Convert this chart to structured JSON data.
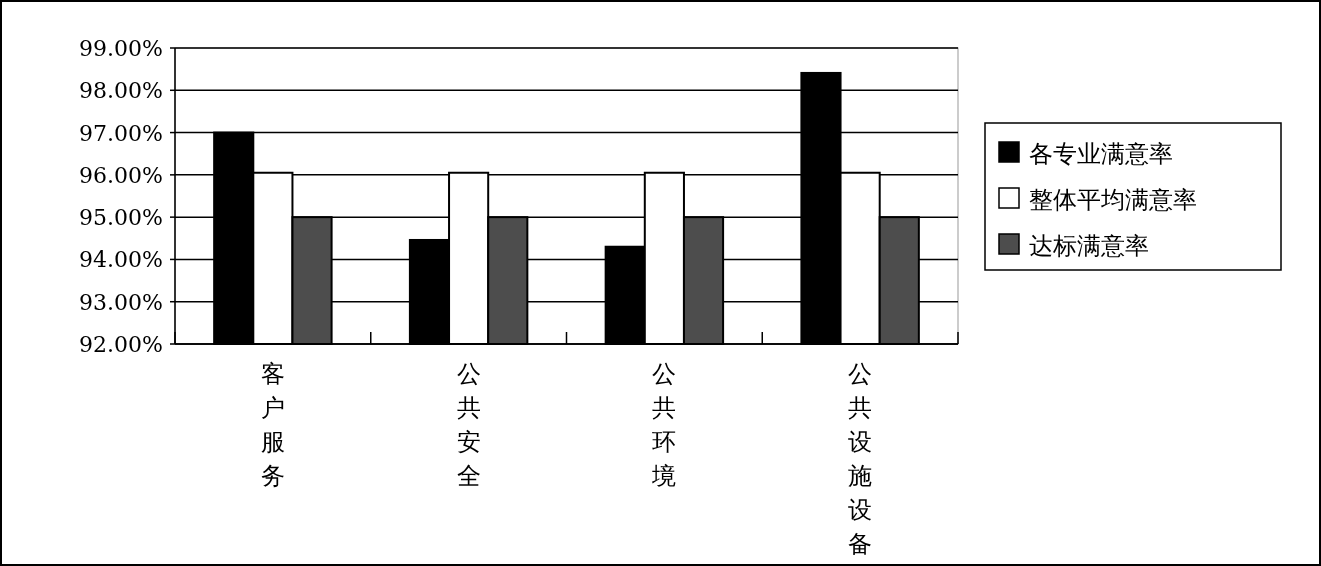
{
  "chart_data": {
    "type": "bar",
    "categories": [
      "客户服务",
      "公共安全",
      "公共环境",
      "公共设施设备"
    ],
    "series": [
      {
        "name": "各专业满意率",
        "color": "#000000",
        "values": [
          97.0,
          94.46,
          94.3,
          98.41
        ]
      },
      {
        "name": "整体平均满意率",
        "color": "#ffffff",
        "values": [
          96.05,
          96.05,
          96.05,
          96.05
        ]
      },
      {
        "name": "达标满意率",
        "color": "#4d4d4d",
        "values": [
          95.0,
          95.0,
          95.0,
          95.0
        ]
      }
    ],
    "ylim": [
      92,
      99
    ],
    "yticks": [
      {
        "value": 92,
        "label": "92.00%"
      },
      {
        "value": 93,
        "label": "93.00%"
      },
      {
        "value": 94,
        "label": "94.00%"
      },
      {
        "value": 95,
        "label": "95.00%"
      },
      {
        "value": 96,
        "label": "96.00%"
      },
      {
        "value": 97,
        "label": "97.00%"
      },
      {
        "value": 98,
        "label": "98.00%"
      },
      {
        "value": 99,
        "label": "99.00%"
      }
    ],
    "grid": "y",
    "legend": "right"
  }
}
